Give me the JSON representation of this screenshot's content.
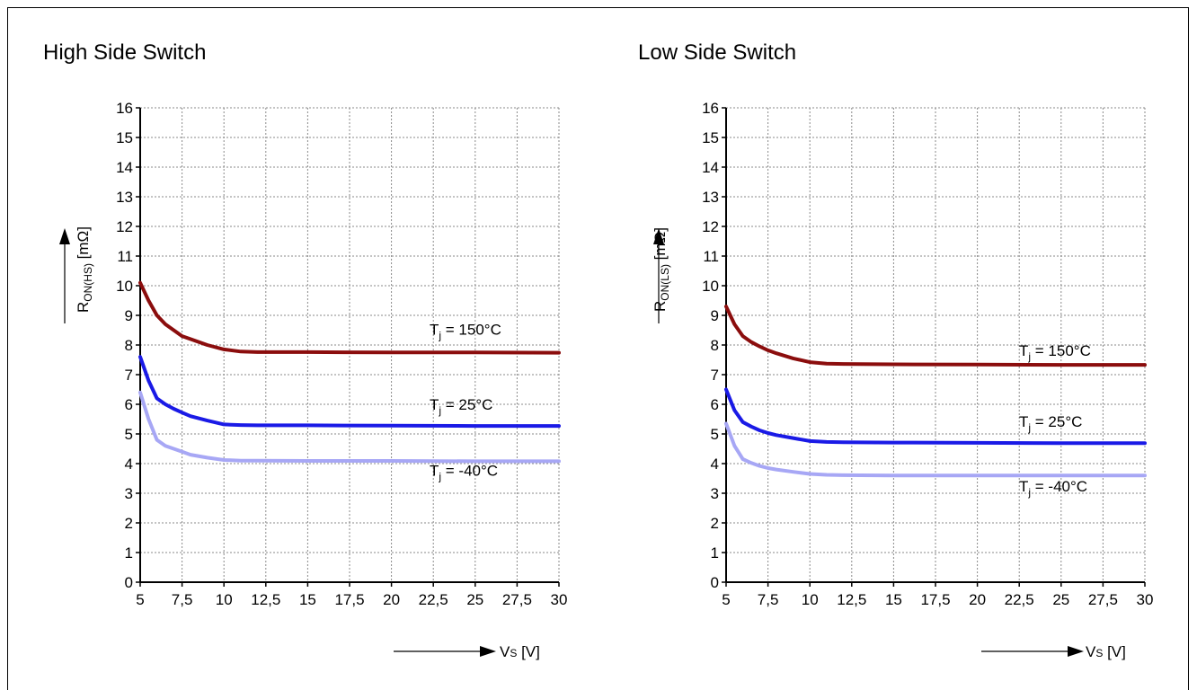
{
  "figure": {
    "colors": {
      "t150": "#8B0D0D",
      "t25": "#1A1AE6",
      "tm40": "#A7A7F5"
    }
  },
  "chart_data": [
    {
      "type": "line",
      "title": "High Side Switch",
      "ylabel": "R_ON(HS) [mΩ]",
      "ylabel_main": "R",
      "ylabel_sub": "ON(HS)",
      "ylabel_unit": " [mΩ]",
      "xlabel": "VS [V]",
      "xlabel_main": "V",
      "xlabel_sub": "S",
      "xlabel_unit": " [V]",
      "xlim": [
        5,
        30
      ],
      "ylim": [
        0,
        16
      ],
      "x_ticks": [
        "5",
        "7,5",
        "10",
        "12,5",
        "15",
        "17,5",
        "20",
        "22,5",
        "25",
        "27,5",
        "30"
      ],
      "y_ticks": [
        "0",
        "1",
        "2",
        "3",
        "4",
        "5",
        "6",
        "7",
        "8",
        "9",
        "10",
        "11",
        "12",
        "13",
        "14",
        "15",
        "16"
      ],
      "grid": true,
      "series": [
        {
          "name": "Tj = 150°C",
          "label_main": "T",
          "label_sub": "j",
          "label_rest": " = 150°C",
          "color": "#8B0D0D",
          "x": [
            5,
            5.5,
            6,
            6.5,
            7,
            7.5,
            8,
            9,
            10,
            11,
            12,
            15,
            20,
            25,
            30
          ],
          "y": [
            10.1,
            9.5,
            9.0,
            8.7,
            8.5,
            8.3,
            8.2,
            8.0,
            7.85,
            7.78,
            7.76,
            7.76,
            7.75,
            7.75,
            7.74
          ]
        },
        {
          "name": "Tj = 25°C",
          "label_main": "T",
          "label_sub": "j",
          "label_rest": " = 25°C",
          "color": "#1A1AE6",
          "x": [
            5,
            5.5,
            6,
            6.5,
            7,
            7.5,
            8,
            9,
            10,
            11,
            12,
            15,
            20,
            25,
            30
          ],
          "y": [
            7.6,
            6.8,
            6.2,
            6.0,
            5.85,
            5.72,
            5.6,
            5.45,
            5.32,
            5.3,
            5.29,
            5.29,
            5.28,
            5.27,
            5.27
          ]
        },
        {
          "name": "Tj = -40°C",
          "label_main": "T",
          "label_sub": "j",
          "label_rest": " = -40°C",
          "color": "#A7A7F5",
          "x": [
            5,
            5.5,
            6,
            6.5,
            7,
            7.5,
            8,
            9,
            10,
            11,
            12,
            15,
            20,
            25,
            30
          ],
          "y": [
            6.4,
            5.5,
            4.8,
            4.6,
            4.5,
            4.4,
            4.3,
            4.2,
            4.12,
            4.1,
            4.1,
            4.09,
            4.09,
            4.08,
            4.08
          ]
        }
      ]
    },
    {
      "type": "line",
      "title": "Low Side Switch",
      "ylabel": "R_ON(LS) [mΩ]",
      "ylabel_main": "R",
      "ylabel_sub": "ON(LS)",
      "ylabel_unit": " [mΩ]",
      "xlabel": "VS [V]",
      "xlabel_main": "V",
      "xlabel_sub": "S",
      "xlabel_unit": " [V]",
      "xlim": [
        5,
        30
      ],
      "ylim": [
        0,
        16
      ],
      "x_ticks": [
        "5",
        "7,5",
        "10",
        "12,5",
        "15",
        "17,5",
        "20",
        "22,5",
        "25",
        "27,5",
        "30"
      ],
      "y_ticks": [
        "0",
        "1",
        "2",
        "3",
        "4",
        "5",
        "6",
        "7",
        "8",
        "9",
        "10",
        "11",
        "12",
        "13",
        "14",
        "15",
        "16"
      ],
      "grid": true,
      "series": [
        {
          "name": "Tj = 150°C",
          "label_main": "T",
          "label_sub": "j",
          "label_rest": " = 150°C",
          "color": "#8B0D0D",
          "x": [
            5,
            5.5,
            6,
            6.5,
            7,
            7.5,
            8,
            9,
            10,
            11,
            12,
            15,
            20,
            25,
            30
          ],
          "y": [
            9.3,
            8.7,
            8.3,
            8.1,
            7.95,
            7.82,
            7.72,
            7.55,
            7.42,
            7.37,
            7.36,
            7.35,
            7.34,
            7.33,
            7.33
          ]
        },
        {
          "name": "Tj = 25°C",
          "label_main": "T",
          "label_sub": "j",
          "label_rest": " = 25°C",
          "color": "#1A1AE6",
          "x": [
            5,
            5.5,
            6,
            6.5,
            7,
            7.5,
            8,
            9,
            10,
            11,
            12,
            15,
            20,
            25,
            30
          ],
          "y": [
            6.5,
            5.8,
            5.4,
            5.25,
            5.12,
            5.03,
            4.96,
            4.86,
            4.76,
            4.73,
            4.72,
            4.71,
            4.7,
            4.69,
            4.69
          ]
        },
        {
          "name": "Tj = -40°C",
          "label_main": "T",
          "label_sub": "j",
          "label_rest": " = -40°C",
          "color": "#A7A7F5",
          "x": [
            5,
            5.5,
            6,
            6.5,
            7,
            7.5,
            8,
            9,
            10,
            11,
            12,
            15,
            20,
            25,
            30
          ],
          "y": [
            5.35,
            4.6,
            4.15,
            4.02,
            3.92,
            3.85,
            3.8,
            3.72,
            3.65,
            3.62,
            3.61,
            3.6,
            3.6,
            3.6,
            3.6
          ]
        }
      ]
    }
  ]
}
